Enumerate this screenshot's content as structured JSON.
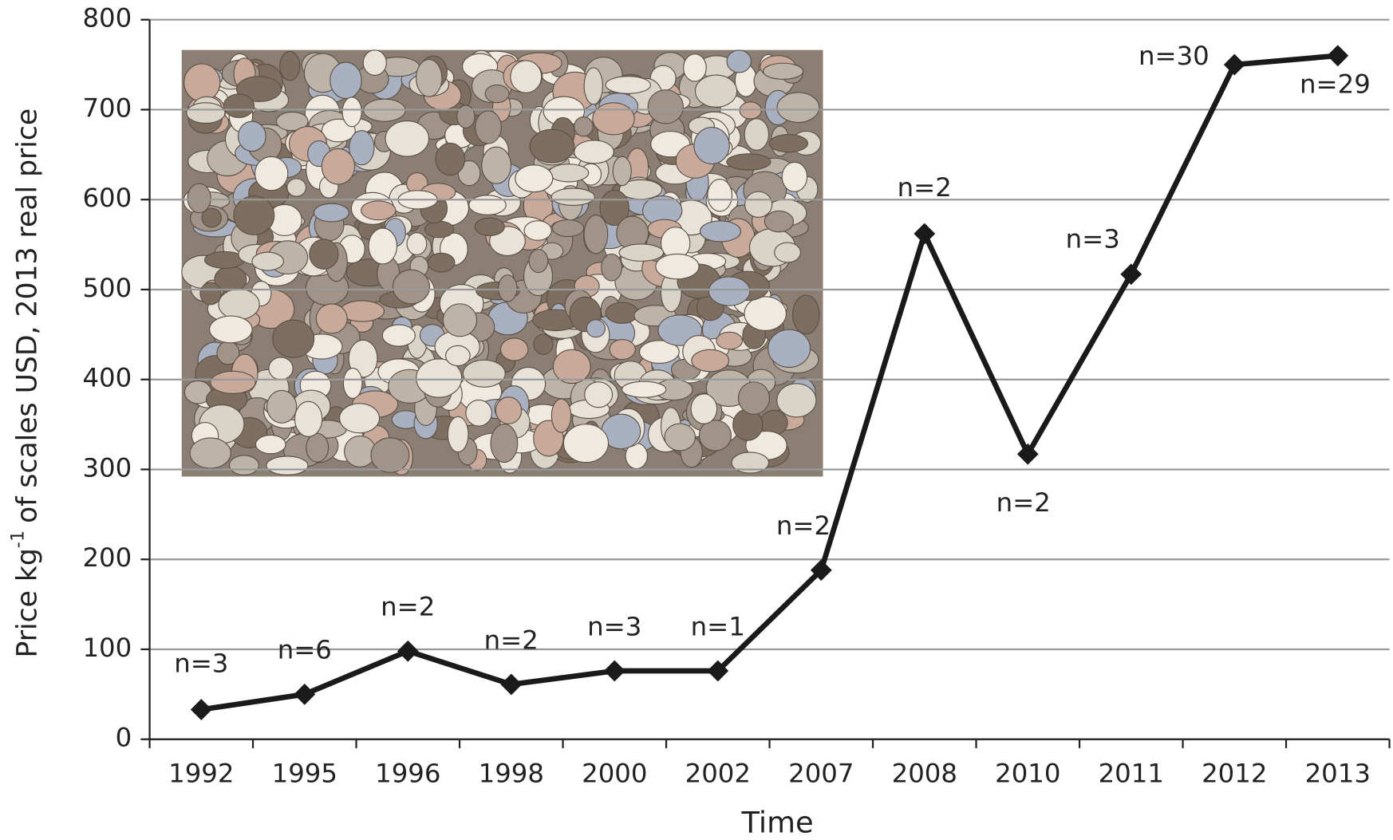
{
  "chart_data": {
    "type": "line",
    "x_label": "Time",
    "y_label": "Price kg",
    "y_label_sup": "-1",
    "y_label_rest": "of scales USD, 2013 real price",
    "categories": [
      "1992",
      "1995",
      "1996",
      "1998",
      "2000",
      "2002",
      "2007",
      "2008",
      "2010",
      "2011",
      "2012",
      "2013"
    ],
    "values": [
      33,
      50,
      98,
      61,
      76,
      76,
      188,
      562,
      317,
      517,
      750,
      760
    ],
    "n_labels": [
      "n=3",
      "n=6",
      "n=2",
      "n=2",
      "n=3",
      "n=1",
      "n=2",
      "n=2",
      "n=2",
      "n=3",
      "n=30",
      "n=29"
    ],
    "color": "#1a1a1a",
    "ylim": [
      0,
      800
    ],
    "yticks": [
      0,
      100,
      200,
      300,
      400,
      500,
      600,
      700,
      800
    ],
    "grid": true
  }
}
